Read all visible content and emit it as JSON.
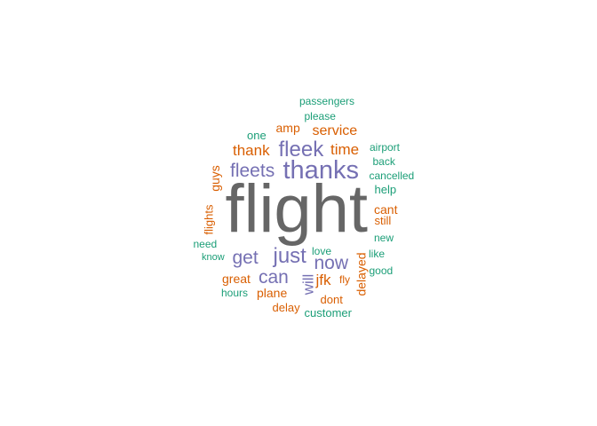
{
  "chart_data": {
    "type": "wordcloud",
    "palette": {
      "dark_gray": "#666666",
      "purple": "#7570B3",
      "orange": "#D95F02",
      "teal": "#1B9E77"
    },
    "words": [
      {
        "text": "flight",
        "color": "#666666",
        "rotated": false
      },
      {
        "text": "thanks",
        "color": "#7570B3",
        "rotated": false
      },
      {
        "text": "fleek",
        "color": "#7570B3",
        "rotated": false
      },
      {
        "text": "fleets",
        "color": "#7570B3",
        "rotated": false
      },
      {
        "text": "just",
        "color": "#7570B3",
        "rotated": false
      },
      {
        "text": "now",
        "color": "#7570B3",
        "rotated": false
      },
      {
        "text": "get",
        "color": "#7570B3",
        "rotated": false
      },
      {
        "text": "can",
        "color": "#7570B3",
        "rotated": false
      },
      {
        "text": "will",
        "color": "#7570B3",
        "rotated": true
      },
      {
        "text": "service",
        "color": "#D95F02",
        "rotated": false
      },
      {
        "text": "thank",
        "color": "#D95F02",
        "rotated": false
      },
      {
        "text": "time",
        "color": "#D95F02",
        "rotated": false
      },
      {
        "text": "jfk",
        "color": "#D95F02",
        "rotated": false
      },
      {
        "text": "amp",
        "color": "#D95F02",
        "rotated": false
      },
      {
        "text": "guys",
        "color": "#D95F02",
        "rotated": true
      },
      {
        "text": "flights",
        "color": "#D95F02",
        "rotated": true
      },
      {
        "text": "great",
        "color": "#D95F02",
        "rotated": false
      },
      {
        "text": "plane",
        "color": "#D95F02",
        "rotated": false
      },
      {
        "text": "cant",
        "color": "#D95F02",
        "rotated": false
      },
      {
        "text": "still",
        "color": "#D95F02",
        "rotated": false
      },
      {
        "text": "delayed",
        "color": "#D95F02",
        "rotated": true
      },
      {
        "text": "dont",
        "color": "#D95F02",
        "rotated": false
      },
      {
        "text": "delay",
        "color": "#D95F02",
        "rotated": false
      },
      {
        "text": "fly",
        "color": "#D95F02",
        "rotated": false
      },
      {
        "text": "passengers",
        "color": "#1B9E77",
        "rotated": false
      },
      {
        "text": "please",
        "color": "#1B9E77",
        "rotated": false
      },
      {
        "text": "one",
        "color": "#1B9E77",
        "rotated": false
      },
      {
        "text": "airport",
        "color": "#1B9E77",
        "rotated": false
      },
      {
        "text": "back",
        "color": "#1B9E77",
        "rotated": false
      },
      {
        "text": "cancelled",
        "color": "#1B9E77",
        "rotated": false
      },
      {
        "text": "help",
        "color": "#1B9E77",
        "rotated": false
      },
      {
        "text": "new",
        "color": "#1B9E77",
        "rotated": false
      },
      {
        "text": "like",
        "color": "#1B9E77",
        "rotated": false
      },
      {
        "text": "good",
        "color": "#1B9E77",
        "rotated": false
      },
      {
        "text": "need",
        "color": "#1B9E77",
        "rotated": false
      },
      {
        "text": "know",
        "color": "#1B9E77",
        "rotated": false
      },
      {
        "text": "love",
        "color": "#1B9E77",
        "rotated": false
      },
      {
        "text": "hours",
        "color": "#1B9E77",
        "rotated": false
      },
      {
        "text": "customer",
        "color": "#1B9E77",
        "rotated": false
      }
    ]
  }
}
